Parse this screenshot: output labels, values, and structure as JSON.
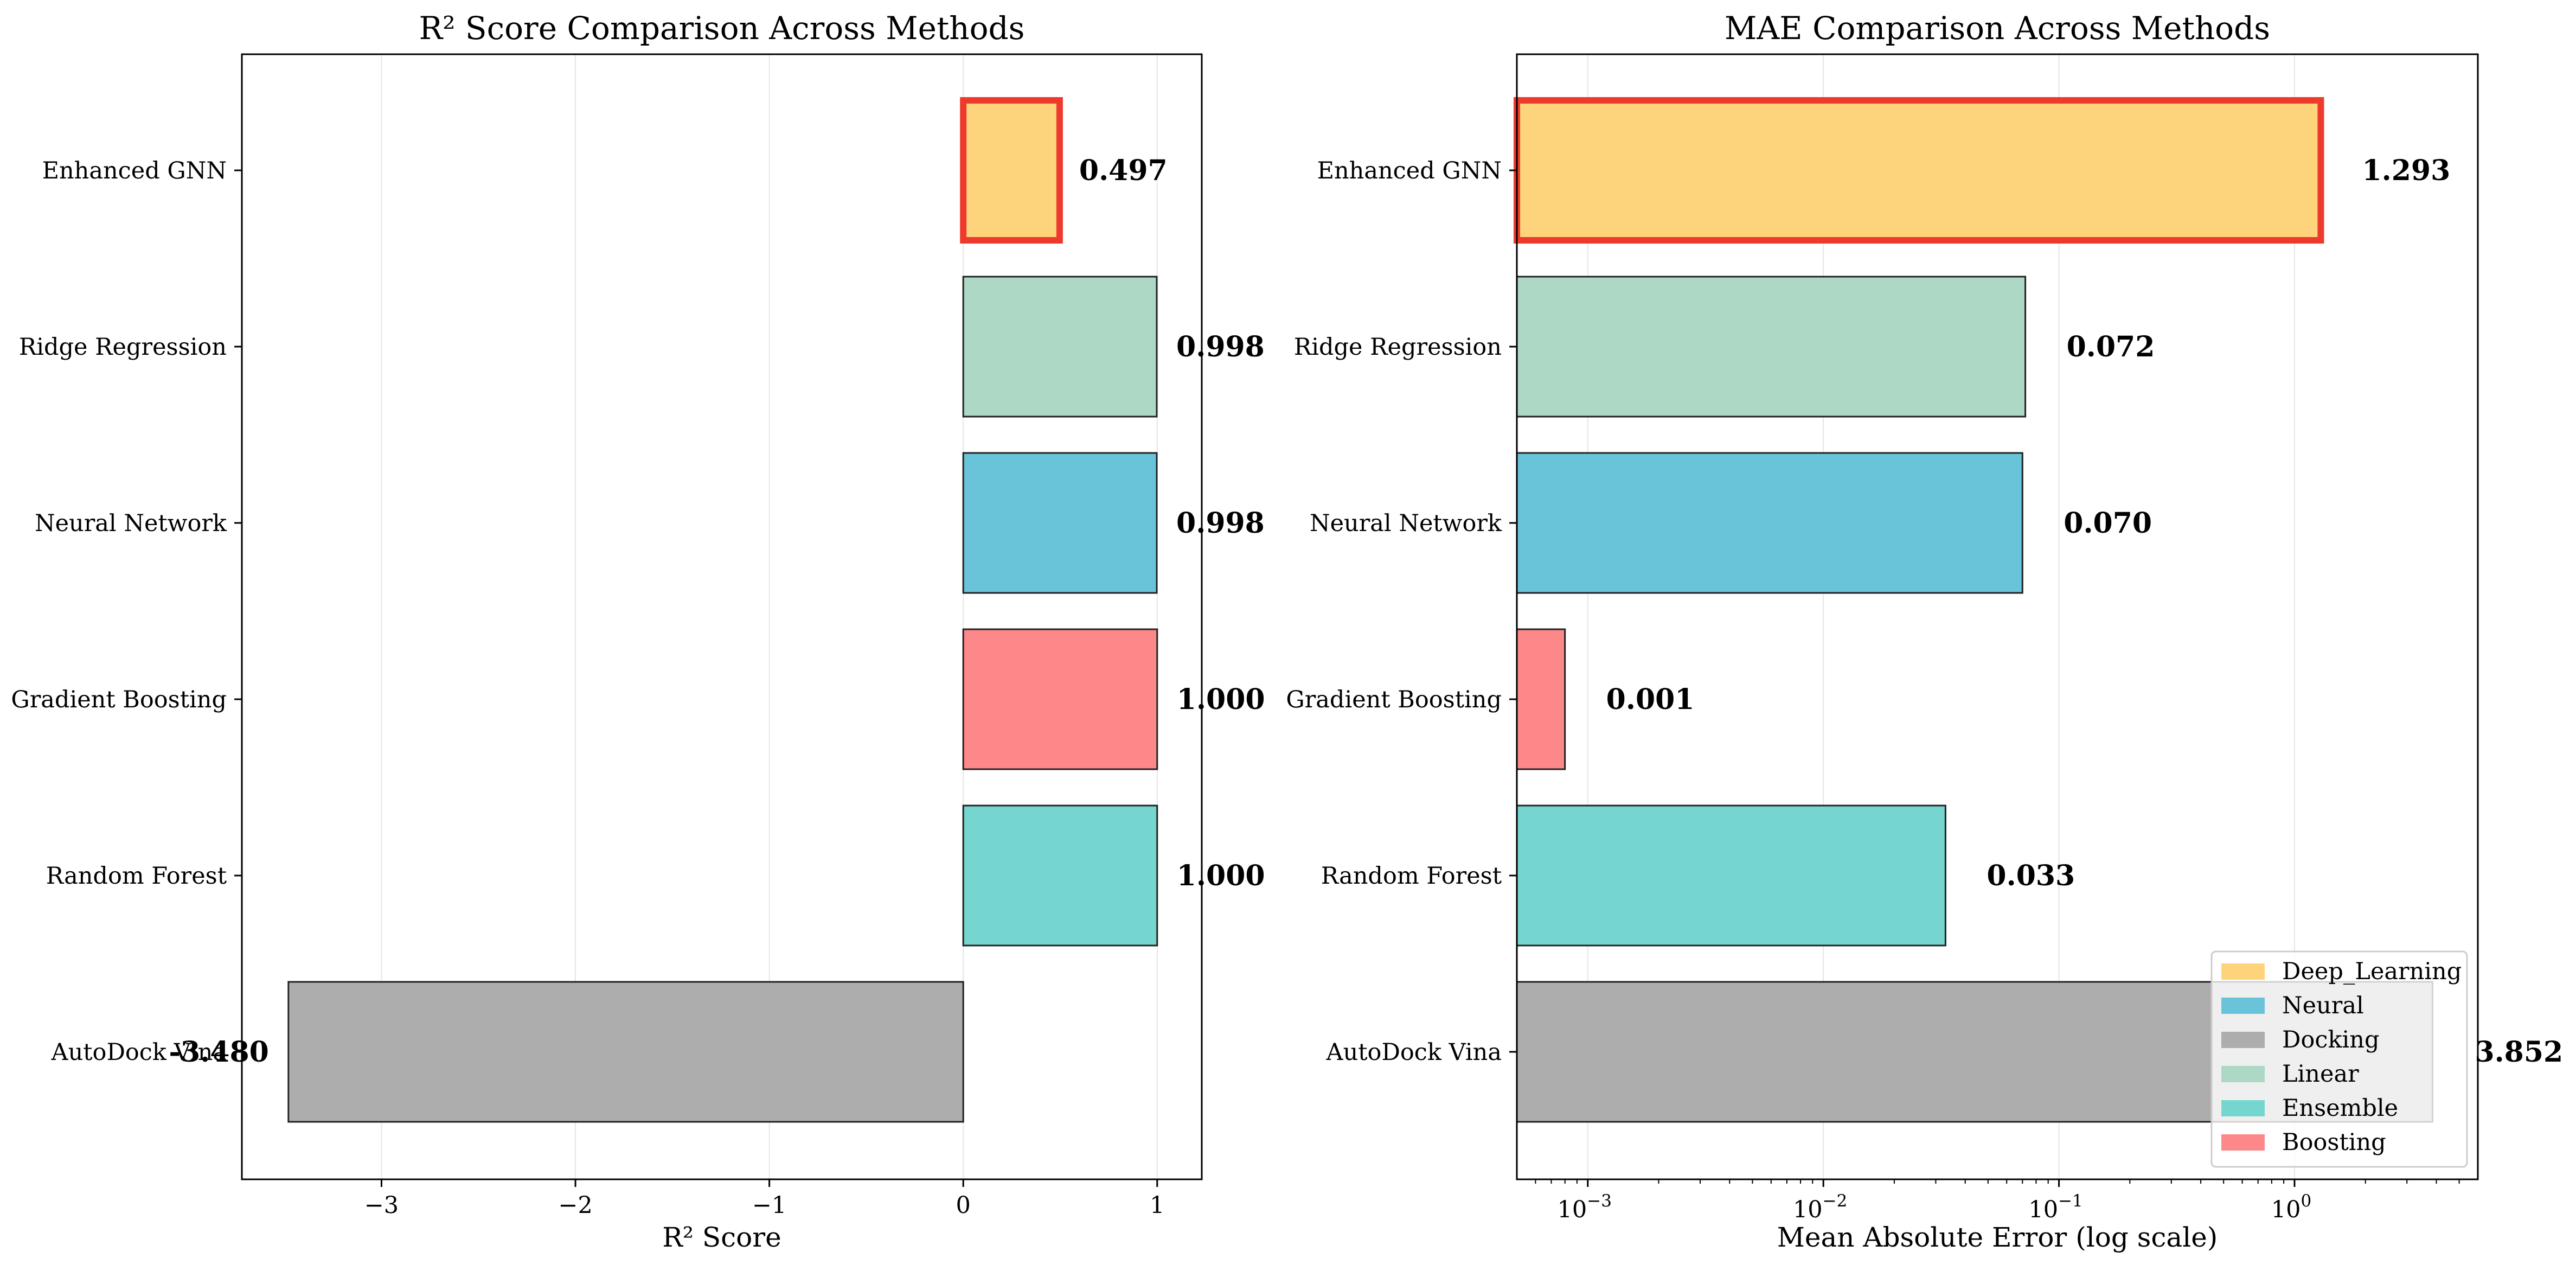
{
  "chart_data": [
    {
      "type": "bar",
      "orientation": "horizontal",
      "title": "R² Score Comparison Across Methods",
      "xlabel": "R² Score",
      "ylabel": "",
      "categories": [
        "Enhanced GNN",
        "Ridge Regression",
        "Neural Network",
        "Gradient Boosting",
        "Random Forest",
        "AutoDock Vina"
      ],
      "values": [
        0.497,
        0.998,
        0.998,
        1.0,
        1.0,
        -3.48
      ],
      "value_labels": [
        "0.497",
        "0.998",
        "0.998",
        "1.000",
        "1.000",
        "-3.480"
      ],
      "groups": [
        "Deep_Learning",
        "Linear",
        "Neural",
        "Boosting",
        "Ensemble",
        "Docking"
      ],
      "highlighted": "Enhanced GNN",
      "xlim": [
        -3.72,
        1.23
      ],
      "xticks": [
        -3,
        -2,
        -1,
        0,
        1
      ],
      "xtick_labels": [
        "−3",
        "−2",
        "−1",
        "0",
        "1"
      ],
      "grid": "vertical"
    },
    {
      "type": "bar",
      "orientation": "horizontal",
      "title": "MAE Comparison Across Methods",
      "xlabel": "Mean Absolute Error (log scale)",
      "ylabel": "",
      "xscale": "log",
      "categories": [
        "Enhanced GNN",
        "Ridge Regression",
        "Neural Network",
        "Gradient Boosting",
        "Random Forest",
        "AutoDock Vina"
      ],
      "values": [
        1.293,
        0.072,
        0.07,
        0.0008,
        0.033,
        3.852
      ],
      "value_labels": [
        "1.293",
        "0.072",
        "0.070",
        "0.001",
        "0.033",
        "3.852"
      ],
      "groups": [
        "Deep_Learning",
        "Linear",
        "Neural",
        "Boosting",
        "Ensemble",
        "Docking"
      ],
      "highlighted": "Enhanced GNN",
      "xlim": [
        0.0005,
        6
      ],
      "xticks": [
        0.001,
        0.01,
        0.1,
        1
      ],
      "xtick_labels": [
        [
          "10",
          "−3"
        ],
        [
          "10",
          "−2"
        ],
        [
          "10",
          "−1"
        ],
        [
          "10",
          "0"
        ]
      ],
      "grid": "vertical",
      "legend": {
        "placement": "lower right",
        "entries": [
          "Deep_Learning",
          "Neural",
          "Docking",
          "Linear",
          "Ensemble",
          "Boosting"
        ]
      }
    }
  ],
  "colors": {
    "Deep_Learning": "#fdd47c",
    "Neural": "#69c4d9",
    "Docking": "#adadad",
    "Linear": "#acd8c5",
    "Ensemble": "#74d6cf",
    "Boosting": "#fd888a",
    "highlight_edge": "#ee3a2c",
    "bar_edge": "#222222",
    "grid": "#e6e6e6"
  }
}
